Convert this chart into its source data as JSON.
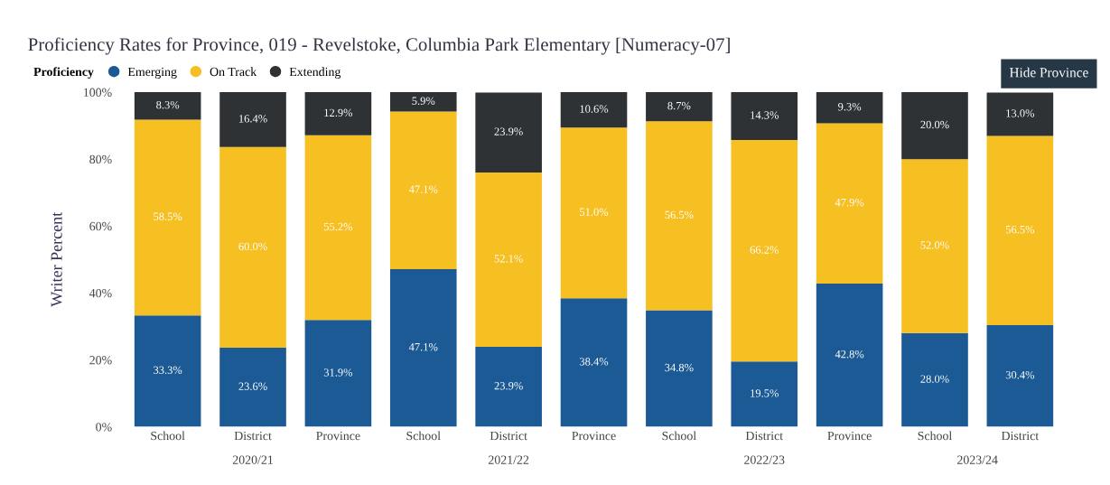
{
  "chart_data": {
    "type": "bar",
    "stacked": true,
    "title": "Proficiency Rates for Province, 019 - Revelstoke, Columbia Park Elementary [Numeracy-07]",
    "ylabel": "Writer Percent",
    "legend_title": "Proficiency",
    "legend": "top left",
    "categories": [
      "School",
      "District",
      "Province",
      "School",
      "District",
      "Province",
      "School",
      "District",
      "Province",
      "School",
      "District"
    ],
    "series": [
      {
        "name": "Emerging",
        "color": "#1b5a94",
        "values": [
          33.3,
          23.6,
          31.9,
          47.1,
          23.9,
          38.4,
          34.8,
          19.5,
          42.8,
          28.0,
          30.4
        ],
        "value_labels": [
          "33.3%",
          "23.6%",
          "31.9%",
          "47.1%",
          "23.9%",
          "38.4%",
          "34.8%",
          "19.5%",
          "42.8%",
          "28.0%",
          "30.4%"
        ]
      },
      {
        "name": "On Track",
        "color": "#f6bf22",
        "values": [
          58.5,
          60.0,
          55.2,
          47.1,
          52.1,
          51.0,
          56.5,
          66.2,
          47.9,
          52.0,
          56.5
        ],
        "value_labels": [
          "58.5%",
          "60.0%",
          "55.2%",
          "47.1%",
          "52.1%",
          "51.0%",
          "56.5%",
          "66.2%",
          "47.9%",
          "52.0%",
          "56.5%"
        ]
      },
      {
        "name": "Extending",
        "color": "#2e3235",
        "values": [
          8.3,
          16.4,
          12.9,
          5.9,
          23.9,
          10.6,
          8.7,
          14.3,
          9.3,
          20.0,
          13.0
        ],
        "value_labels": [
          "8.3%",
          "16.4%",
          "12.9%",
          "5.9%",
          "23.9%",
          "10.6%",
          "8.7%",
          "14.3%",
          "9.3%",
          "20.0%",
          "13.0%"
        ]
      }
    ],
    "ylim": [
      0,
      100
    ],
    "yticks": [
      {
        "value": 0,
        "label": "0%"
      },
      {
        "value": 20,
        "label": "20%"
      },
      {
        "value": 40,
        "label": "40%"
      },
      {
        "value": 60,
        "label": "60%"
      },
      {
        "value": 80,
        "label": "80%"
      },
      {
        "value": 100,
        "label": "100%"
      }
    ],
    "grid": false,
    "annotations": [
      "2020/21",
      "2021/22",
      "2022/23",
      "2023/24",
      "Hide Province"
    ]
  }
}
